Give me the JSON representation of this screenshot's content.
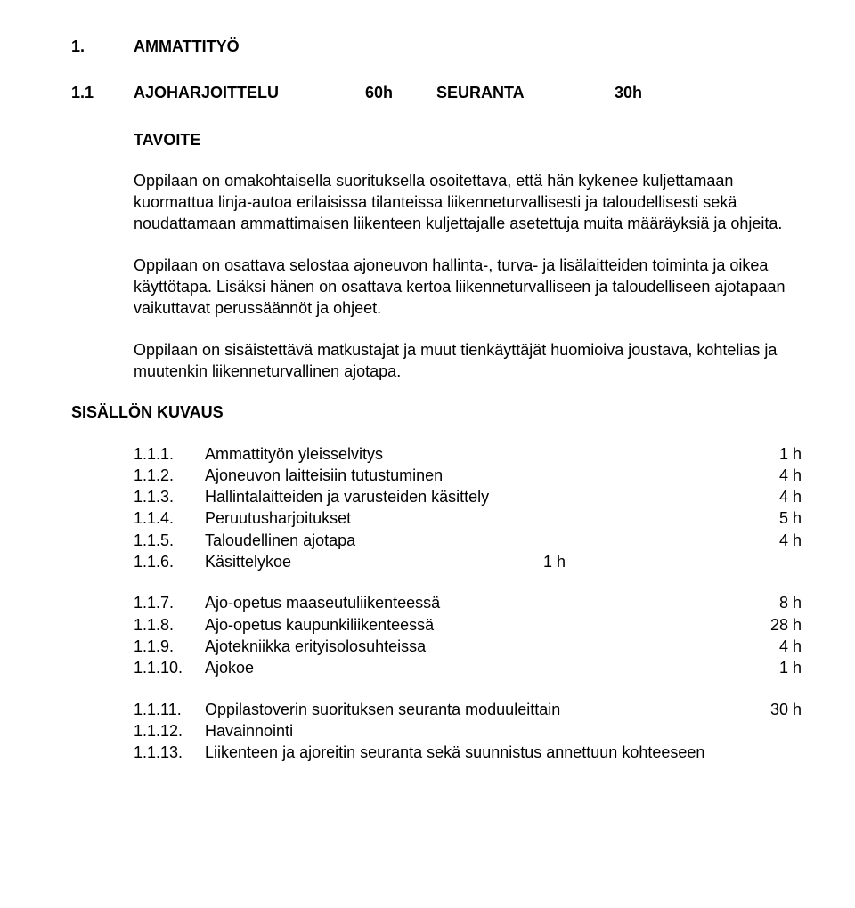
{
  "heading1": {
    "num": "1.",
    "title": "AMMATTITYÖ"
  },
  "heading2": {
    "num": "1.1",
    "title": "AJOHARJOITTELU",
    "hours": "60h",
    "sub": "SEURANTA",
    "subhours": "30h"
  },
  "tavoite_label": "TAVOITE",
  "para1": "Oppilaan on omakohtaisella suorituksella osoitettava, että hän kykenee kuljettamaan kuormattua linja-autoa erilaisissa tilanteissa liikenneturvallisesti ja taloudellisesti sekä noudattamaan ammattimaisen liikenteen kuljettajalle asetettuja muita määräyksiä ja ohjeita.",
  "para2": "Oppilaan on osattava selostaa ajoneuvon hallinta-, turva- ja lisälaitteiden toiminta ja oikea käyttötapa. Lisäksi hänen on osattava kertoa liikenneturvalliseen ja taloudelliseen ajotapaan vaikuttavat perussäännöt ja ohjeet.",
  "para3": "Oppilaan on sisäistettävä matkustajat ja muut tienkäyttäjät huomioiva joustava, kohtelias ja muutenkin liikenneturvallinen ajotapa.",
  "sisal_label": "SISÄLLÖN  KUVAUS",
  "toc": {
    "g1": [
      {
        "num": "1.1.1.",
        "label": "Ammattityön yleisselvitys",
        "hours": "1 h"
      },
      {
        "num": "1.1.2.",
        "label": "Ajoneuvon laitteisiin tutustuminen",
        "hours": "4 h"
      },
      {
        "num": "1.1.3.",
        "label": "Hallintalaitteiden ja varusteiden käsittely",
        "hours": "4 h"
      },
      {
        "num": "1.1.4.",
        "label": "Peruutusharjoitukset",
        "hours": "5 h"
      },
      {
        "num": "1.1.5.",
        "label": "Taloudellinen ajotapa",
        "hours": "4 h"
      },
      {
        "num": "1.1.6.",
        "label": "Käsittelykoe",
        "hours": "1 h",
        "hours_inline": true
      }
    ],
    "g2": [
      {
        "num": "1.1.7.",
        "label": "Ajo-opetus maaseutuliikenteessä",
        "hours": "8 h"
      },
      {
        "num": "1.1.8.",
        "label": "Ajo-opetus kaupunkiliikenteessä",
        "hours": "28 h"
      },
      {
        "num": "1.1.9.",
        "label": "Ajotekniikka erityisolosuhteissa",
        "hours": "4 h"
      },
      {
        "num": "1.1.10.",
        "label": "Ajokoe",
        "hours": "1 h"
      }
    ],
    "g3": [
      {
        "num": "1.1.11.",
        "label": "Oppilastoverin suorituksen seuranta moduuleittain",
        "hours": "30 h"
      },
      {
        "num": "1.1.12.",
        "label": "Havainnointi",
        "hours": ""
      },
      {
        "num": "1.1.13.",
        "label": "Liikenteen ja ajoreitin seuranta sekä suunnistus annettuun kohteeseen",
        "hours": ""
      }
    ]
  }
}
